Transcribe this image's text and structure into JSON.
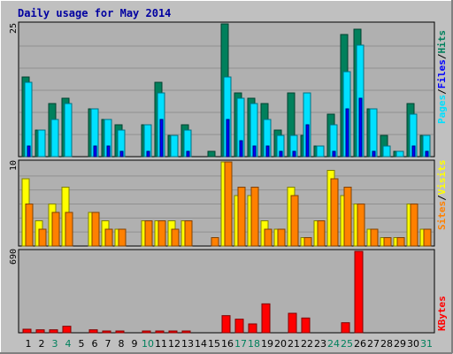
{
  "chart_data": {
    "type": "bar",
    "title": "Daily usage for May 2014",
    "days": [
      "1",
      "2",
      "3",
      "4",
      "5",
      "6",
      "7",
      "8",
      "9",
      "10",
      "11",
      "12",
      "13",
      "14",
      "15",
      "16",
      "17",
      "18",
      "19",
      "20",
      "21",
      "22",
      "23",
      "24",
      "25",
      "26",
      "27",
      "28",
      "29",
      "30",
      "31"
    ],
    "weekend_days": [
      "3",
      "4",
      "10",
      "17",
      "18",
      "24",
      "25",
      "31"
    ],
    "panels": [
      {
        "id": "top",
        "max_label": "25",
        "ylim": [
          0,
          25
        ],
        "legend": [
          "Pages",
          "/",
          "Files",
          "/",
          "Hits"
        ],
        "series": [
          {
            "name": "Hits",
            "color": "#00805C",
            "values": [
              15,
              5,
              10,
              11,
              0,
              9,
              7,
              6,
              0,
              6,
              14,
              4,
              6,
              0,
              1,
              25,
              12,
              11,
              10,
              5,
              12,
              4,
              2,
              8,
              23,
              24,
              9,
              4,
              1,
              10,
              4
            ]
          },
          {
            "name": "Files",
            "color": "#00E0FF",
            "values": [
              14,
              5,
              7,
              10,
              0,
              9,
              7,
              5,
              0,
              6,
              12,
              4,
              5,
              0,
              0,
              15,
              11,
              10,
              7,
              4,
              4,
              12,
              2,
              6,
              16,
              21,
              9,
              2,
              1,
              8,
              4
            ]
          },
          {
            "name": "Pages",
            "color": "#0000FF",
            "values": [
              2,
              0,
              0,
              0,
              0,
              2,
              2,
              1,
              0,
              1,
              7,
              0,
              1,
              0,
              0,
              7,
              3,
              2,
              2,
              1,
              1,
              6,
              0,
              1,
              9,
              11,
              1,
              0,
              0,
              2,
              1
            ]
          }
        ]
      },
      {
        "id": "mid",
        "max_label": "10",
        "ylim": [
          0,
          10
        ],
        "legend": [
          "Sites",
          "/",
          "Visits"
        ],
        "series": [
          {
            "name": "Sites",
            "color": "#FFFF00",
            "values": [
              8,
              3,
              5,
              7,
              0,
              4,
              3,
              2,
              0,
              3,
              3,
              3,
              3,
              0,
              0,
              10,
              6,
              6,
              3,
              2,
              7,
              1,
              3,
              9,
              6,
              5,
              2,
              1,
              1,
              5,
              2
            ]
          },
          {
            "name": "Visits",
            "color": "#FF8000",
            "values": [
              5,
              2,
              4,
              4,
              0,
              4,
              2,
              2,
              0,
              3,
              3,
              2,
              3,
              0,
              1,
              10,
              7,
              7,
              2,
              2,
              6,
              1,
              3,
              8,
              7,
              5,
              2,
              1,
              1,
              5,
              2
            ]
          }
        ]
      },
      {
        "id": "bot",
        "max_label": "690",
        "ylim": [
          0,
          690
        ],
        "legend": [
          "KBytes"
        ],
        "series": [
          {
            "name": "KBytes",
            "color": "#FF0000",
            "values": [
              30,
              25,
              25,
              55,
              0,
              25,
              10,
              10,
              0,
              15,
              15,
              10,
              10,
              0,
              0,
              145,
              115,
              75,
              245,
              0,
              165,
              125,
              0,
              0,
              85,
              690,
              0,
              0,
              0,
              0,
              0
            ]
          }
        ]
      }
    ]
  }
}
